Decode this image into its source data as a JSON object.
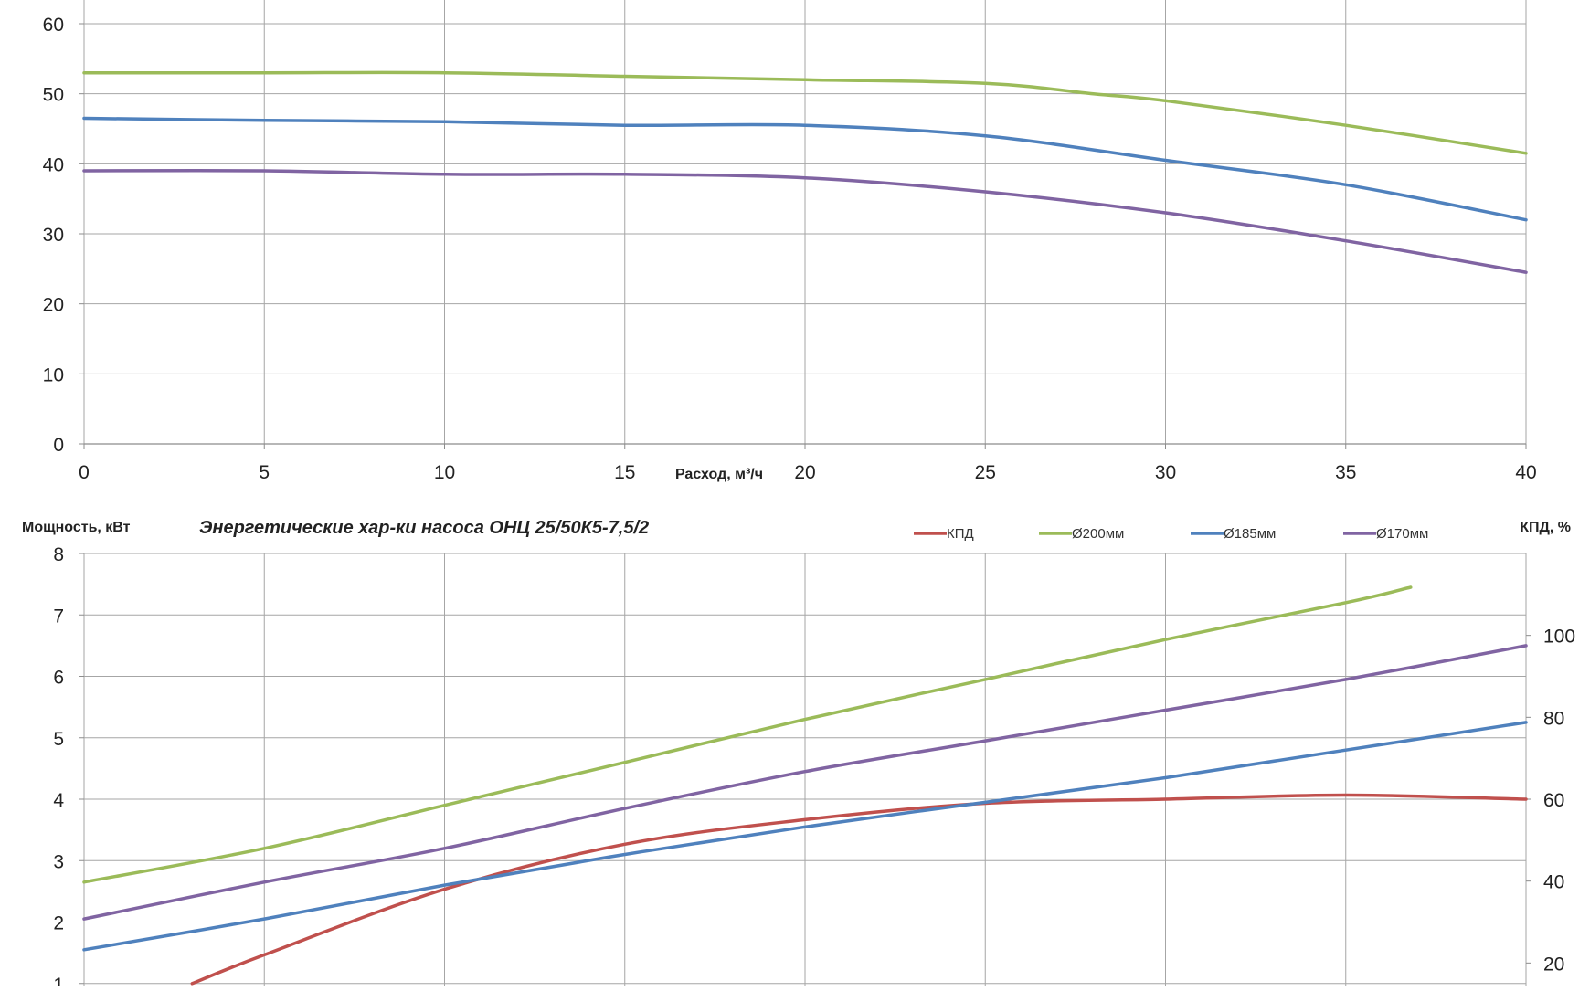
{
  "colors": {
    "kpd": "#c0504d",
    "d200": "#9bbb59",
    "d185": "#4f81bd",
    "d170": "#8064a2",
    "grid": "#a6a6a6",
    "axis": "#8c8c8c"
  },
  "chart_data": [
    {
      "type": "line",
      "title": "",
      "xlabel": "Расход, м³/ч",
      "ylabel": "",
      "xlim": [
        0,
        40
      ],
      "ylim": [
        0,
        60
      ],
      "x_ticks": [
        "0",
        "5",
        "10",
        "15",
        "20",
        "25",
        "30",
        "35",
        "40"
      ],
      "y_ticks": [
        "0",
        "10",
        "20",
        "30",
        "40",
        "50",
        "60"
      ],
      "grid": true,
      "series": [
        {
          "name": "Ø200мм",
          "color_key": "d200",
          "x": [
            0,
            5,
            10,
            15,
            20,
            25,
            28,
            30,
            35,
            40
          ],
          "y": [
            53,
            53,
            53,
            52.5,
            52,
            51.5,
            50,
            49,
            45.5,
            41.5
          ]
        },
        {
          "name": "Ø185мм",
          "color_key": "d185",
          "x": [
            0,
            5,
            10,
            15,
            20,
            25,
            30,
            35,
            40
          ],
          "y": [
            46.5,
            46.2,
            46,
            45.5,
            45.5,
            44,
            40.5,
            37,
            32
          ]
        },
        {
          "name": "Ø170мм",
          "color_key": "d170",
          "x": [
            0,
            5,
            10,
            15,
            20,
            25,
            30,
            35,
            40
          ],
          "y": [
            39,
            39,
            38.5,
            38.5,
            38,
            36,
            33,
            29,
            24.5
          ]
        }
      ]
    },
    {
      "type": "line",
      "title": "Энергетические хар-ки насоса ОНЦ 25/50К5-7,5/2",
      "ylabel": "Мощность, кВт",
      "y2label": "КПД, %",
      "xlim": [
        0,
        40
      ],
      "ylim": [
        0,
        8
      ],
      "y2lim": [
        0,
        120
      ],
      "y_ticks": [
        "1",
        "2",
        "3",
        "4",
        "5",
        "6",
        "7",
        "8"
      ],
      "y2_ticks": [
        "20",
        "40",
        "60",
        "80",
        "100"
      ],
      "legend_position": "top",
      "grid": true,
      "series": [
        {
          "name": "КПД",
          "axis": "y2",
          "color_key": "kpd",
          "x": [
            3,
            5,
            10,
            15,
            20,
            25,
            30,
            35,
            40
          ],
          "y": [
            15,
            22,
            38,
            49,
            55,
            59,
            60,
            61,
            60
          ]
        },
        {
          "name": "Ø200мм",
          "axis": "y",
          "color_key": "d200",
          "x": [
            0,
            5,
            10,
            15,
            20,
            25,
            30,
            35,
            36.8
          ],
          "y": [
            2.65,
            3.2,
            3.9,
            4.6,
            5.3,
            5.95,
            6.6,
            7.2,
            7.45
          ]
        },
        {
          "name": "Ø185мм",
          "axis": "y",
          "color_key": "d185",
          "x": [
            0,
            5,
            10,
            15,
            20,
            25,
            30,
            35,
            40
          ],
          "y": [
            1.55,
            2.05,
            2.6,
            3.1,
            3.55,
            3.95,
            4.35,
            4.8,
            5.25
          ]
        },
        {
          "name": "Ø170мм",
          "axis": "y",
          "color_key": "d170",
          "x": [
            0,
            5,
            10,
            15,
            20,
            25,
            30,
            35,
            40
          ],
          "y": [
            2.05,
            2.65,
            3.2,
            3.85,
            4.45,
            4.95,
            5.45,
            5.95,
            6.5
          ]
        }
      ]
    }
  ]
}
